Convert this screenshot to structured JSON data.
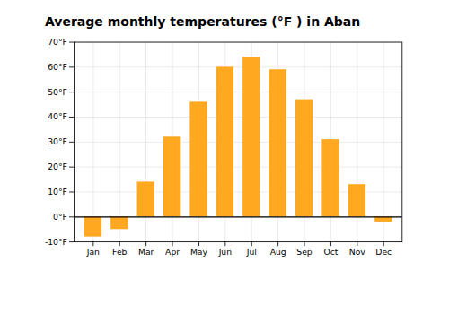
{
  "chart_data": {
    "type": "bar",
    "title": "Average monthly temperatures (°F ) in Aban",
    "categories": [
      "Jan",
      "Feb",
      "Mar",
      "Apr",
      "May",
      "Jun",
      "Jul",
      "Aug",
      "Sep",
      "Oct",
      "Nov",
      "Dec"
    ],
    "values": [
      -8,
      -5,
      14,
      32,
      46,
      60,
      64,
      59,
      47,
      31,
      13,
      -2
    ],
    "color": "#FFA820",
    "ylim": [
      -10,
      70
    ],
    "yticks": [
      {
        "value": -10,
        "label": "-10°F"
      },
      {
        "value": 0,
        "label": "0°F"
      },
      {
        "value": 10,
        "label": "10°F"
      },
      {
        "value": 20,
        "label": "20°F"
      },
      {
        "value": 30,
        "label": "30°F"
      },
      {
        "value": 40,
        "label": "40°F"
      },
      {
        "value": 50,
        "label": "50°F"
      },
      {
        "value": 60,
        "label": "60°F"
      },
      {
        "value": 70,
        "label": "70°F"
      }
    ],
    "grid": true
  }
}
